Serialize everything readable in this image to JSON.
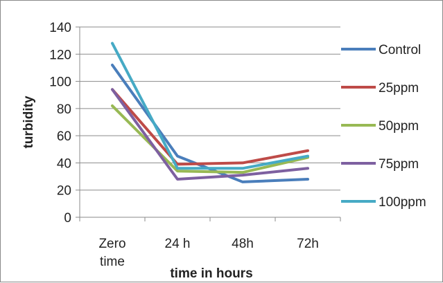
{
  "chart_data": {
    "type": "line",
    "categories": [
      [
        "Zero",
        "time"
      ],
      [
        "24 h"
      ],
      [
        "48h"
      ],
      [
        "72h"
      ]
    ],
    "series": [
      {
        "name": "Control",
        "color": "#4A7EBB",
        "values": [
          112,
          45,
          26,
          28
        ]
      },
      {
        "name": "25ppm",
        "color": "#BE4B48",
        "values": [
          94,
          39,
          40,
          49
        ]
      },
      {
        "name": "50ppm",
        "color": "#98B954",
        "values": [
          82,
          34,
          33,
          44
        ]
      },
      {
        "name": "75ppm",
        "color": "#7D60A0",
        "values": [
          94,
          28,
          31,
          36
        ]
      },
      {
        "name": "100ppm",
        "color": "#46AAC5",
        "values": [
          128,
          36,
          36,
          45
        ]
      }
    ],
    "xlabel": "time in hours",
    "ylabel": "turbidity",
    "ylim": [
      0,
      140
    ],
    "yticks": [
      0,
      20,
      40,
      60,
      80,
      100,
      120,
      140
    ],
    "grid": true,
    "legend_position": "right"
  }
}
